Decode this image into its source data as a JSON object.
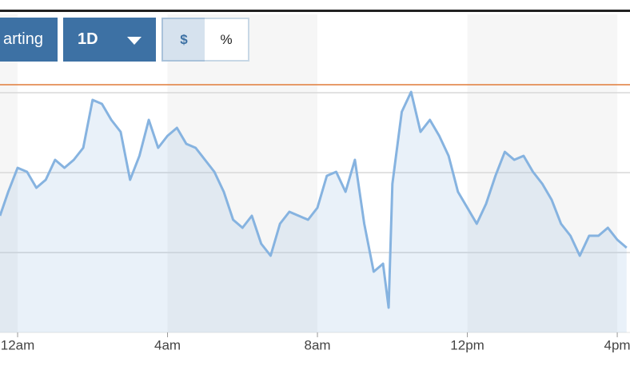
{
  "ui": {
    "buttons": [
      "arting",
      "1D",
      "$",
      "%"
    ]
  },
  "chart_data": {
    "type": "line",
    "x": [
      -0.47,
      -0.25,
      0,
      0.25,
      0.5,
      0.75,
      1,
      1.25,
      1.5,
      1.75,
      2,
      2.25,
      2.5,
      2.75,
      3,
      3.25,
      3.5,
      3.75,
      4,
      4.25,
      4.5,
      4.75,
      5,
      5.25,
      5.5,
      5.75,
      6,
      6.25,
      6.5,
      6.75,
      7,
      7.25,
      7.5,
      7.75,
      8,
      8.25,
      8.5,
      8.75,
      9,
      9.25,
      9.5,
      9.75,
      9.9,
      10,
      10.25,
      10.5,
      10.75,
      11,
      11.25,
      11.5,
      11.75,
      12,
      12.25,
      12.5,
      12.75,
      13,
      13.25,
      13.5,
      13.75,
      14,
      14.25,
      14.5,
      14.75,
      15,
      15.25,
      15.5,
      15.75,
      16,
      16.25
    ],
    "values": [
      1.46,
      1.76,
      2.06,
      2.01,
      1.81,
      1.91,
      2.16,
      2.06,
      2.16,
      2.31,
      2.91,
      2.86,
      2.66,
      2.51,
      1.91,
      2.21,
      2.66,
      2.31,
      2.46,
      2.56,
      2.36,
      2.31,
      2.16,
      2.01,
      1.76,
      1.41,
      1.31,
      1.46,
      1.11,
      0.96,
      1.36,
      1.51,
      1.46,
      1.41,
      1.56,
      1.96,
      2.01,
      1.76,
      2.16,
      1.36,
      0.76,
      0.86,
      0.31,
      1.86,
      2.76,
      3.01,
      2.51,
      2.66,
      2.46,
      2.21,
      1.76,
      1.56,
      1.36,
      1.61,
      1.96,
      2.26,
      2.16,
      2.21,
      2.01,
      1.86,
      1.66,
      1.36,
      1.21,
      0.96,
      1.21,
      1.21,
      1.31,
      1.16,
      1.06
    ],
    "color": "#86b3e0",
    "reference_line": 3.1,
    "reference_color": "#e07b39",
    "xlim": [
      -0.47,
      16.34
    ],
    "xticks": [
      {
        "value": 0,
        "label": "12am"
      },
      {
        "value": 4,
        "label": "4am"
      },
      {
        "value": 8,
        "label": "8am"
      },
      {
        "value": 12,
        "label": "12pm"
      },
      {
        "value": 16,
        "label": "4pm"
      }
    ],
    "ylim": [
      0,
      3.2
    ],
    "yticks": [
      1,
      2,
      3
    ],
    "grid": true
  }
}
